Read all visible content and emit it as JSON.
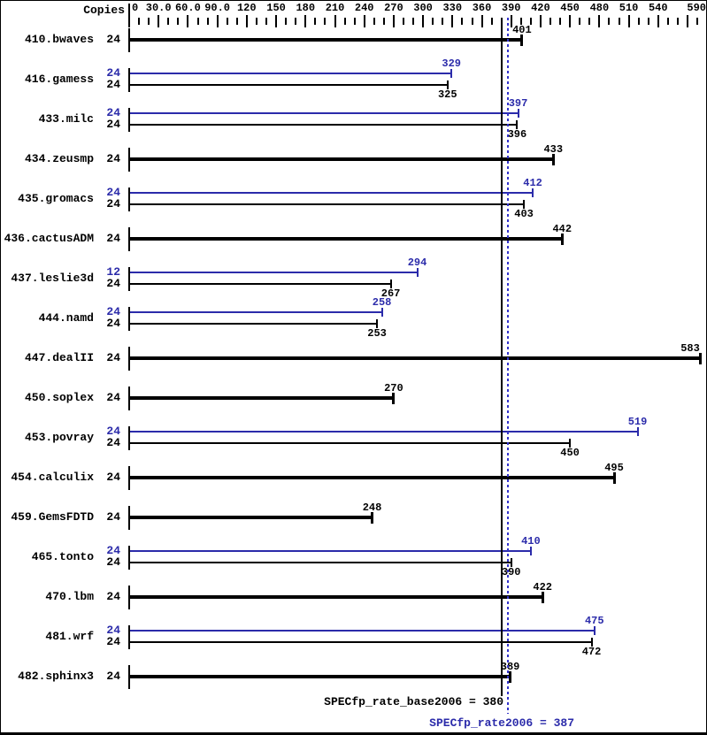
{
  "header": {
    "copies_label": "Copies"
  },
  "colors": {
    "peak_blue": "#2b2baa",
    "base_black": "#000000",
    "dotted_line_blue": "#3333cc"
  },
  "summary": {
    "base_text": "SPECfp_rate_base2006 = 380",
    "peak_text": "SPECfp_rate2006 = 387",
    "base_value": 380,
    "peak_value": 387
  },
  "chart_data": {
    "type": "bar",
    "orientation": "horizontal",
    "title": "SPECfp_rate2006 result chart",
    "xlim": [
      0,
      590
    ],
    "grid": false,
    "x_ticks": {
      "labels": [
        "0",
        "30.0",
        "60.0",
        "90.0",
        "120",
        "150",
        "180",
        "210",
        "240",
        "270",
        "300",
        "330",
        "360",
        "390",
        "420",
        "450",
        "480",
        "510",
        "540",
        "590"
      ],
      "values": [
        0,
        30,
        60,
        90,
        120,
        150,
        180,
        210,
        240,
        270,
        300,
        330,
        360,
        390,
        420,
        450,
        480,
        510,
        540,
        590
      ],
      "minor_step": 10,
      "major_step": 30
    },
    "reference_lines": [
      {
        "name": "SPECfp_rate_base2006",
        "value": 380,
        "style": "solid",
        "color": "#000000"
      },
      {
        "name": "SPECfp_rate2006",
        "value": 387,
        "style": "dotted",
        "color": "#3333cc"
      }
    ],
    "benchmarks": [
      {
        "name": "410.bwaves",
        "bars": [
          {
            "kind": "base",
            "copies": "24",
            "value": 401
          }
        ]
      },
      {
        "name": "416.gamess",
        "bars": [
          {
            "kind": "peak",
            "copies": "24",
            "value": 329
          },
          {
            "kind": "base",
            "copies": "24",
            "value": 325
          }
        ]
      },
      {
        "name": "433.milc",
        "bars": [
          {
            "kind": "peak",
            "copies": "24",
            "value": 397
          },
          {
            "kind": "base",
            "copies": "24",
            "value": 396
          }
        ]
      },
      {
        "name": "434.zeusmp",
        "bars": [
          {
            "kind": "base",
            "copies": "24",
            "value": 433
          }
        ]
      },
      {
        "name": "435.gromacs",
        "bars": [
          {
            "kind": "peak",
            "copies": "24",
            "value": 412
          },
          {
            "kind": "base",
            "copies": "24",
            "value": 403
          }
        ]
      },
      {
        "name": "436.cactusADM",
        "bars": [
          {
            "kind": "base",
            "copies": "24",
            "value": 442
          }
        ]
      },
      {
        "name": "437.leslie3d",
        "bars": [
          {
            "kind": "peak",
            "copies": "12",
            "value": 294
          },
          {
            "kind": "base",
            "copies": "24",
            "value": 267
          }
        ]
      },
      {
        "name": "444.namd",
        "bars": [
          {
            "kind": "peak",
            "copies": "24",
            "value": 258
          },
          {
            "kind": "base",
            "copies": "24",
            "value": 253
          }
        ]
      },
      {
        "name": "447.dealII",
        "bars": [
          {
            "kind": "base",
            "copies": "24",
            "value": 583
          }
        ]
      },
      {
        "name": "450.soplex",
        "bars": [
          {
            "kind": "base",
            "copies": "24",
            "value": 270
          }
        ]
      },
      {
        "name": "453.povray",
        "bars": [
          {
            "kind": "peak",
            "copies": "24",
            "value": 519
          },
          {
            "kind": "base",
            "copies": "24",
            "value": 450
          }
        ]
      },
      {
        "name": "454.calculix",
        "bars": [
          {
            "kind": "base",
            "copies": "24",
            "value": 495
          }
        ]
      },
      {
        "name": "459.GemsFDTD",
        "bars": [
          {
            "kind": "base",
            "copies": "24",
            "value": 248
          }
        ]
      },
      {
        "name": "465.tonto",
        "bars": [
          {
            "kind": "peak",
            "copies": "24",
            "value": 410
          },
          {
            "kind": "base",
            "copies": "24",
            "value": 390
          }
        ]
      },
      {
        "name": "470.lbm",
        "bars": [
          {
            "kind": "base",
            "copies": "24",
            "value": 422
          }
        ]
      },
      {
        "name": "481.wrf",
        "bars": [
          {
            "kind": "peak",
            "copies": "24",
            "value": 475
          },
          {
            "kind": "base",
            "copies": "24",
            "value": 472
          }
        ]
      },
      {
        "name": "482.sphinx3",
        "bars": [
          {
            "kind": "base",
            "copies": "24",
            "value": 389
          }
        ]
      }
    ]
  }
}
